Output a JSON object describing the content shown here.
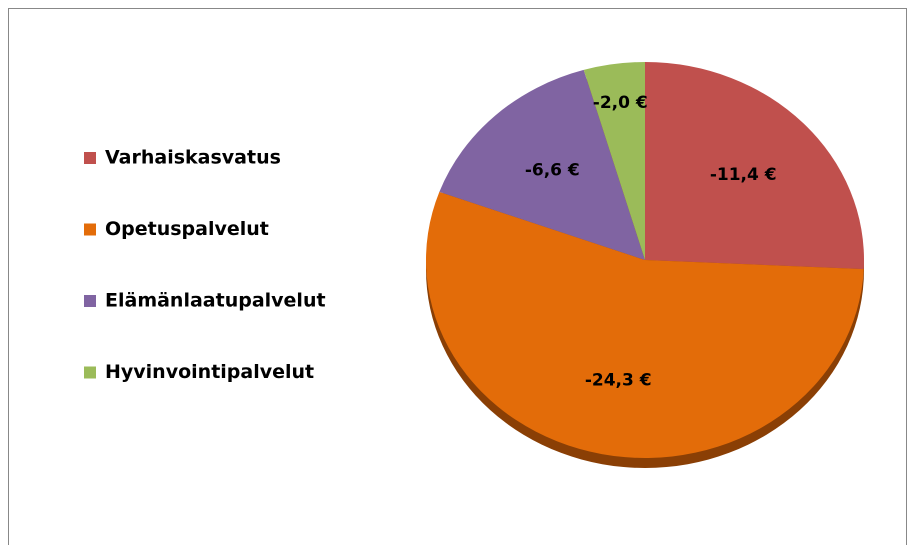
{
  "chart_data": {
    "type": "pie",
    "categories": [
      "Varhaiskasvatus",
      "Opetuspalvelut",
      "Elämänlaatupalvelut",
      "Hyvinvointipalvelut"
    ],
    "values": [
      -11.4,
      -24.3,
      -6.6,
      -2.0
    ],
    "value_labels": [
      "-11,4 €",
      "-24,3 €",
      "-6,6 €",
      "-2,0 €"
    ],
    "colors": [
      "#c0504d",
      "#e36c09",
      "#8064a2",
      "#9bbb59"
    ],
    "legend": "left"
  }
}
